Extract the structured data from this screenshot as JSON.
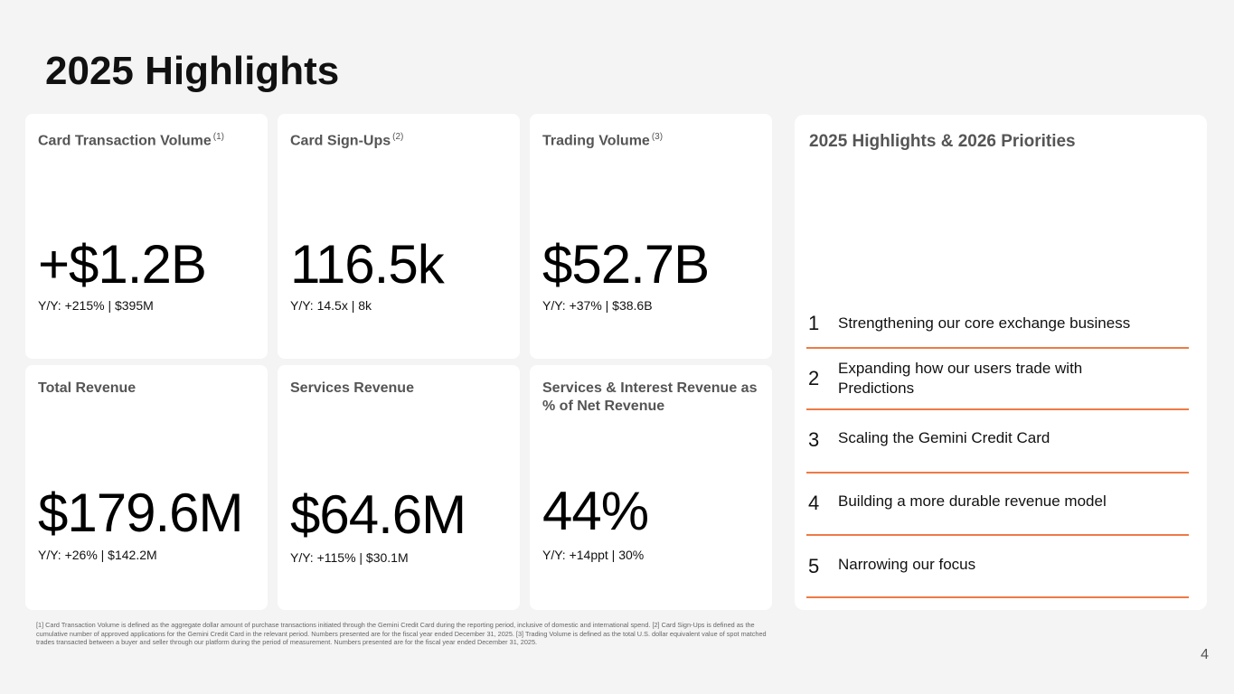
{
  "title": "2025 Highlights",
  "cards": [
    {
      "label": "Card Transaction Volume",
      "note": "(1)",
      "value": "+$1.2B",
      "sub": "Y/Y:  +215% | $395M"
    },
    {
      "label": "Card Sign-Ups",
      "note": "(2)",
      "value": "116.5k",
      "sub": "Y/Y:  14.5x | 8k"
    },
    {
      "label": "Trading Volume",
      "note": "(3)",
      "value": "$52.7B",
      "sub": "Y/Y:  +37% | $38.6B"
    },
    {
      "label": "Total Revenue",
      "value": "$179.6M",
      "sub": "Y/Y:  +26% | $142.2M"
    },
    {
      "label": "Services Revenue",
      "value": "$64.6M",
      "sub": "Y/Y:  +115% | $30.1M"
    },
    {
      "label": "Services & Interest Revenue as % of Net Revenue",
      "value": "44%",
      "sub": "Y/Y:  +14ppt | 30%"
    }
  ],
  "priorities": {
    "title": "2025 Highlights & 2026 Priorities",
    "items": [
      {
        "num": "1",
        "text": "Strengthening our core exchange business"
      },
      {
        "num": "2",
        "text": "Expanding how our users trade with Predictions"
      },
      {
        "num": "3",
        "text": "Scaling the Gemini Credit Card"
      },
      {
        "num": "4",
        "text": "Building a more durable revenue model"
      },
      {
        "num": "5",
        "text": "Narrowing our focus"
      }
    ]
  },
  "accent_color": "#ee7a45",
  "footnote": "[1] Card Transaction Volume is defined as the aggregate dollar amount of purchase transactions initiated through the Gemini Credit Card during the reporting period, inclusive of domestic and international spend. [2] Card Sign-Ups is defined as the cumulative number of approved applications for the Gemini Credit Card in the relevant period. Numbers presented are for the fiscal year ended December 31, 2025.  [3] Trading Volume is defined as the total U.S. dollar equivalent value of spot matched trades transacted between a buyer and seller through our platform during the period of measurement. Numbers presented are for the fiscal year ended December 31, 2025.",
  "page_number": "4"
}
